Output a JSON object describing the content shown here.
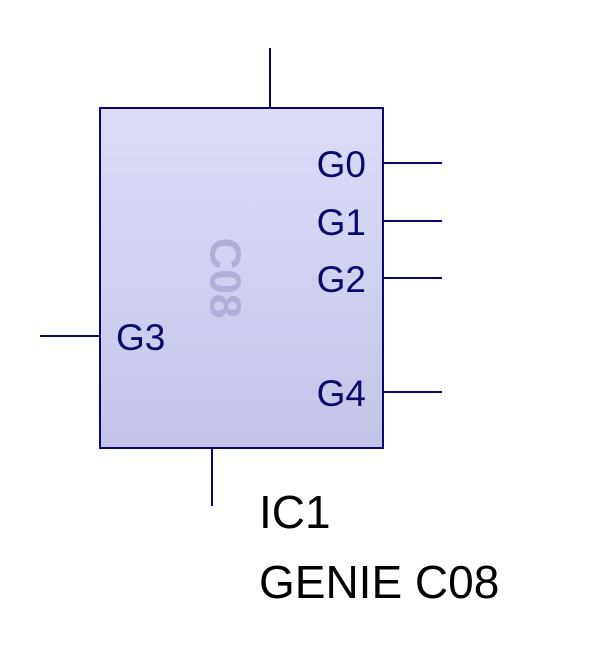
{
  "component": {
    "body_label": "C08",
    "designator": "IC1",
    "part_name": "GENIE C08",
    "pins": {
      "g0": "G0",
      "g1": "G1",
      "g2": "G2",
      "g3": "G3",
      "g4": "G4"
    }
  },
  "colors": {
    "outline": "#0a0a6e",
    "fill_top": "#dcdcf8",
    "fill_bottom": "#c4c4e8",
    "watermark": "#b0b0d8",
    "text": "#000000"
  }
}
